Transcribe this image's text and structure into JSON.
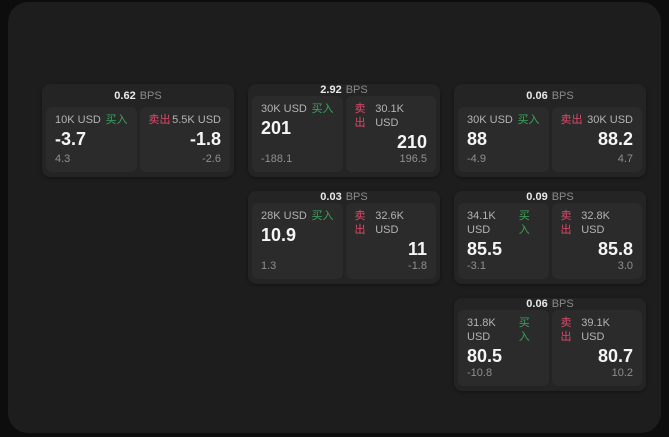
{
  "labels": {
    "bps": "BPS",
    "buy": "买入",
    "sell": "卖出"
  },
  "colors": {
    "background": "#0d0d0d",
    "panel": "#1d1d1d",
    "card": "#242424",
    "tile": "#2b2b2b",
    "buy_green": "#3aa65a",
    "sell_red": "#e0476a"
  },
  "cards": [
    {
      "bps": "0.62",
      "buy": {
        "amount": "10K USD",
        "price": "-3.7",
        "delta": "4.3"
      },
      "sell": {
        "amount": "5.5K USD",
        "price": "-1.8",
        "delta": "-2.6"
      }
    },
    {
      "bps": "2.92",
      "buy": {
        "amount": "30K USD",
        "price": "201",
        "delta": "-188.1"
      },
      "sell": {
        "amount": "30.1K USD",
        "price": "210",
        "delta": "196.5"
      }
    },
    {
      "bps": "0.06",
      "buy": {
        "amount": "30K USD",
        "price": "88",
        "delta": "-4.9"
      },
      "sell": {
        "amount": "30K USD",
        "price": "88.2",
        "delta": "4.7"
      }
    },
    {
      "bps": "0.03",
      "buy": {
        "amount": "28K USD",
        "price": "10.9",
        "delta": "1.3"
      },
      "sell": {
        "amount": "32.6K USD",
        "price": "11",
        "delta": "-1.8"
      }
    },
    {
      "bps": "0.09",
      "buy": {
        "amount": "34.1K USD",
        "price": "85.5",
        "delta": "-3.1"
      },
      "sell": {
        "amount": "32.8K USD",
        "price": "85.8",
        "delta": "3.0"
      }
    },
    {
      "bps": "0.06",
      "buy": {
        "amount": "31.8K USD",
        "price": "80.5",
        "delta": "-10.8"
      },
      "sell": {
        "amount": "39.1K USD",
        "price": "80.7",
        "delta": "10.2"
      }
    }
  ]
}
